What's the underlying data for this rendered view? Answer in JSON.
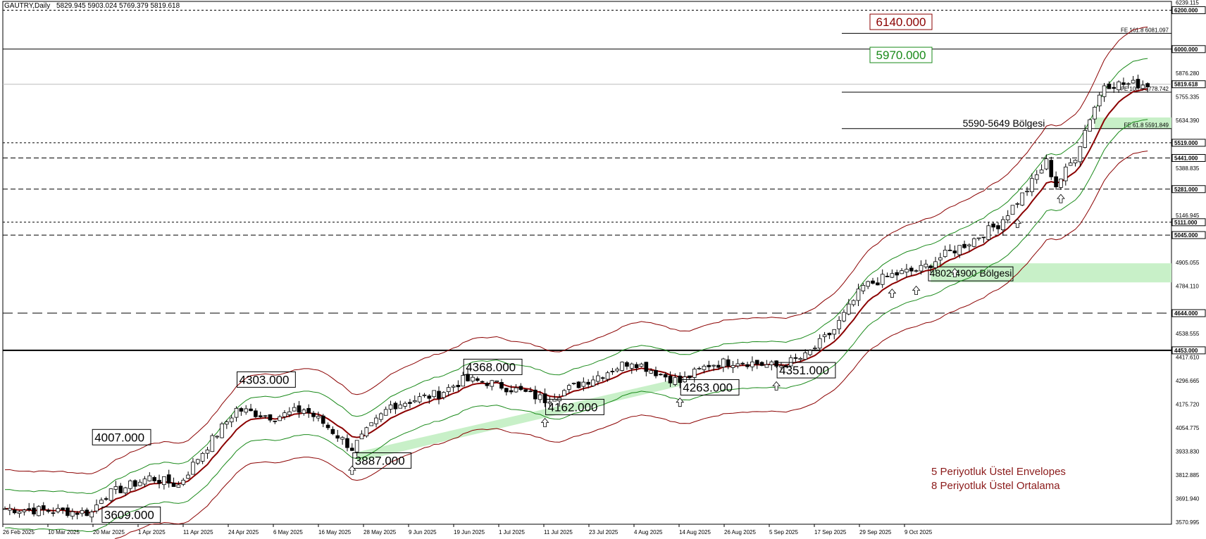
{
  "header": {
    "symbol": "GAUTRY,Daily",
    "ohlc": "5829.945 5903.024 5769.379 5819.618"
  },
  "chart_data": {
    "type": "candlestick",
    "symbol": "GAUTRY",
    "timeframe": "Daily",
    "ylim": [
      3560,
      6245
    ],
    "price_ticks": [
      6239.115,
      5876.28,
      5755.335,
      5634.39,
      5388.835,
      5146.945,
      4905.055,
      4784.11,
      4538.555,
      4417.61,
      4296.665,
      4175.72,
      4054.775,
      3933.83,
      3812.885,
      3691.94,
      3570.995
    ],
    "date_labels": [
      "26 Feb 2025",
      "10 Mar 2025",
      "20 Mar 2025",
      "1 Apr 2025",
      "11 Apr 2025",
      "24 Apr 2025",
      "6 May 2025",
      "16 May 2025",
      "28 May 2025",
      "9 Jun 2025",
      "19 Jun 2025",
      "1 Jul 2025",
      "11 Jul 2025",
      "23 Jul 2025",
      "4 Aug 2025",
      "14 Aug 2025",
      "26 Aug 2025",
      "5 Sep 2025",
      "17 Sep 2025",
      "29 Sep 2025",
      "9 Oct 2025"
    ],
    "last_price": "5819.618",
    "levels": [
      {
        "price": 6200,
        "label": "6200.000",
        "style": "dotted"
      },
      {
        "price": 6000,
        "label": "6000.000",
        "style": "solid"
      },
      {
        "price": 5519,
        "label": "5519.000",
        "style": "dotted"
      },
      {
        "price": 5441,
        "label": "5441.000",
        "style": "dashed"
      },
      {
        "price": 5281,
        "label": "5281.000",
        "style": "dashed"
      },
      {
        "price": 5111,
        "label": "5111.000",
        "style": "dotted"
      },
      {
        "price": 5045,
        "label": "5045.000",
        "style": "dashed"
      },
      {
        "price": 4644,
        "label": "4644.000",
        "style": "longdash"
      },
      {
        "price": 4453,
        "label": "4453.000",
        "style": "thick"
      }
    ],
    "fibonacci": [
      {
        "price": 6081.097,
        "label": "FE 161.8 6081.097"
      },
      {
        "price": 5778.742,
        "label": "FE 100.0 5778.742"
      },
      {
        "price": 5591.849,
        "label": "FE 61.8 5591.849"
      }
    ],
    "zones": [
      {
        "low": 5590,
        "high": 5649,
        "label": "5590-5649 Bölgesi"
      },
      {
        "low": 4802,
        "high": 4900,
        "label": "4802-4900 Bölgesi"
      }
    ],
    "targets": [
      {
        "price": 6140,
        "label": "6140.000",
        "color": "#8b0000"
      },
      {
        "price": 5970,
        "label": "5970.000",
        "color": "#1a8a1a"
      }
    ],
    "annotations": [
      {
        "label": "4007.000",
        "date_index": 18,
        "price": 4007
      },
      {
        "label": "3609.000",
        "date_index": 20,
        "price": 3609
      },
      {
        "label": "4303.000",
        "date_index": 48,
        "price": 4303
      },
      {
        "label": "3887.000",
        "date_index": 72,
        "price": 3887
      },
      {
        "label": "4368.000",
        "date_index": 95,
        "price": 4368
      },
      {
        "label": "4162.000",
        "date_index": 112,
        "price": 4162
      },
      {
        "label": "4263.000",
        "date_index": 140,
        "price": 4263
      },
      {
        "label": "4351.000",
        "date_index": 160,
        "price": 4351
      }
    ],
    "legend": [
      "5 Periyotluk Üstel Envelopes",
      "8 Periyotluk Üstel Ortalama"
    ],
    "colors": {
      "candle_up": "#ffffff",
      "candle_down": "#000000",
      "ema": "#8b0000",
      "envelope_inner": "#1a8a1a",
      "envelope_outer": "#8b0000",
      "zone": "#c8f0c8",
      "legend_text": "#8b1a1a"
    },
    "price_path": [
      {
        "date_index": 0,
        "close": 3640
      },
      {
        "date_index": 18,
        "close": 3620
      },
      {
        "date_index": 20,
        "close": 3700
      },
      {
        "date_index": 30,
        "close": 3800
      },
      {
        "date_index": 36,
        "close": 3760
      },
      {
        "date_index": 40,
        "close": 3900
      },
      {
        "date_index": 48,
        "close": 4150
      },
      {
        "date_index": 56,
        "close": 4110
      },
      {
        "date_index": 62,
        "close": 4150
      },
      {
        "date_index": 66,
        "close": 4080
      },
      {
        "date_index": 72,
        "close": 3950
      },
      {
        "date_index": 80,
        "close": 4170
      },
      {
        "date_index": 90,
        "close": 4230
      },
      {
        "date_index": 95,
        "close": 4300
      },
      {
        "date_index": 100,
        "close": 4290
      },
      {
        "date_index": 106,
        "close": 4250
      },
      {
        "date_index": 112,
        "close": 4200
      },
      {
        "date_index": 120,
        "close": 4290
      },
      {
        "date_index": 130,
        "close": 4400
      },
      {
        "date_index": 136,
        "close": 4330
      },
      {
        "date_index": 140,
        "close": 4290
      },
      {
        "date_index": 146,
        "close": 4380
      },
      {
        "date_index": 152,
        "close": 4400
      },
      {
        "date_index": 160,
        "close": 4370
      },
      {
        "date_index": 166,
        "close": 4420
      },
      {
        "date_index": 172,
        "close": 4560
      },
      {
        "date_index": 178,
        "close": 4780
      },
      {
        "date_index": 184,
        "close": 4840
      },
      {
        "date_index": 190,
        "close": 4870
      },
      {
        "date_index": 194,
        "close": 4930
      },
      {
        "date_index": 200,
        "close": 5010
      },
      {
        "date_index": 206,
        "close": 5100
      },
      {
        "date_index": 212,
        "close": 5280
      },
      {
        "date_index": 216,
        "close": 5420
      },
      {
        "date_index": 218,
        "close": 5300
      },
      {
        "date_index": 222,
        "close": 5450
      },
      {
        "date_index": 225,
        "close": 5650
      },
      {
        "date_index": 228,
        "close": 5820
      }
    ]
  }
}
